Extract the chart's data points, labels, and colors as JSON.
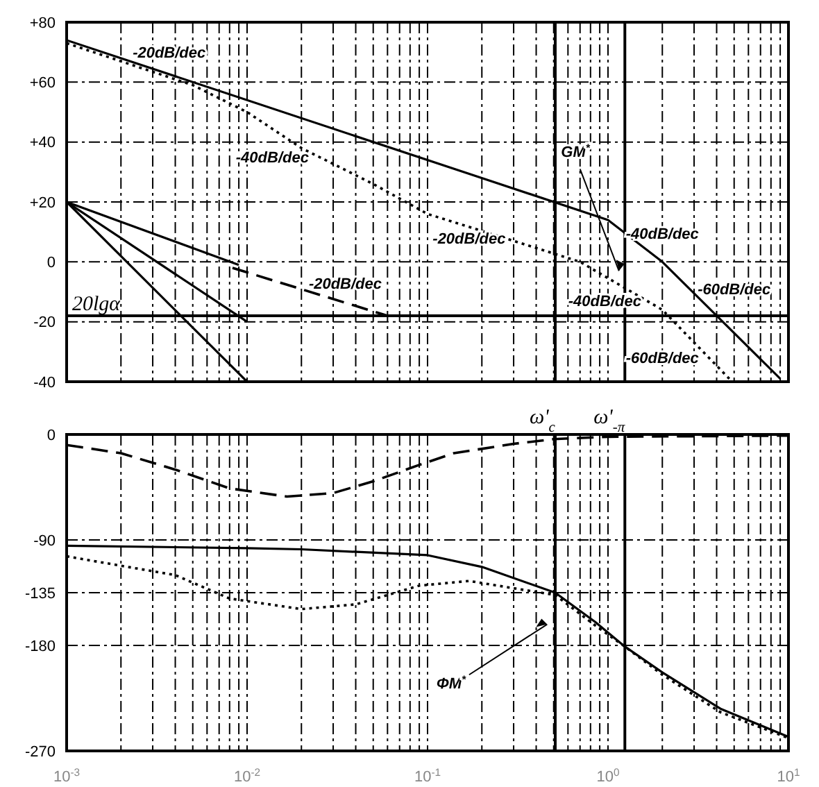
{
  "chart_data": [
    {
      "type": "line",
      "log": "x",
      "grid": true,
      "marker": "none",
      "tick_labels": "y",
      "xlim": [
        0.001,
        10
      ],
      "ylim": [
        -40,
        80
      ],
      "xticks": [
        {
          "value": 0.001,
          "label": null
        },
        {
          "value": 0.002,
          "label": null
        },
        {
          "value": 0.003,
          "label": null
        },
        {
          "value": 0.004,
          "label": null
        },
        {
          "value": 0.005,
          "label": null
        },
        {
          "value": 0.006,
          "label": null
        },
        {
          "value": 0.007,
          "label": null
        },
        {
          "value": 0.008,
          "label": null
        },
        {
          "value": 0.009,
          "label": null
        },
        {
          "value": 0.01,
          "label": null
        },
        {
          "value": 0.02,
          "label": null
        },
        {
          "value": 0.03,
          "label": null
        },
        {
          "value": 0.04,
          "label": null
        },
        {
          "value": 0.05,
          "label": null
        },
        {
          "value": 0.06,
          "label": null
        },
        {
          "value": 0.07,
          "label": null
        },
        {
          "value": 0.08,
          "label": null
        },
        {
          "value": 0.09,
          "label": null
        },
        {
          "value": 0.1,
          "label": null
        },
        {
          "value": 0.2,
          "label": null
        },
        {
          "value": 0.3,
          "label": null
        },
        {
          "value": 0.4,
          "label": null
        },
        {
          "value": 0.5,
          "label": null
        },
        {
          "value": 0.6,
          "label": null
        },
        {
          "value": 0.7,
          "label": null
        },
        {
          "value": 0.8,
          "label": null
        },
        {
          "value": 0.9,
          "label": null
        },
        {
          "value": 1,
          "label": null
        },
        {
          "value": 2,
          "label": null
        },
        {
          "value": 3,
          "label": null
        },
        {
          "value": 4,
          "label": null
        },
        {
          "value": 5,
          "label": null
        },
        {
          "value": 6,
          "label": null
        },
        {
          "value": 7,
          "label": null
        },
        {
          "value": 8,
          "label": null
        },
        {
          "value": 9,
          "label": null
        },
        {
          "value": 10,
          "label": null
        }
      ],
      "yticks": [
        {
          "value": 80,
          "label": "+80"
        },
        {
          "value": 60,
          "label": "+60"
        },
        {
          "value": 40,
          "label": "+40"
        },
        {
          "value": 20,
          "label": "+20"
        },
        0,
        -20,
        -40
      ],
      "series": [
        {
          "color": "#000000",
          "line_style": "solid",
          "x": [
            0.001,
            1,
            2,
            9
          ],
          "values": [
            74,
            14,
            0,
            -39
          ]
        },
        {
          "color": "#000000",
          "line_style": "dotted",
          "x": [
            0.001,
            0.005,
            0.01,
            0.02,
            0.05,
            0.1,
            0.3,
            0.7,
            2,
            4.7
          ],
          "values": [
            73,
            59,
            50,
            38,
            26,
            16,
            7,
            0,
            -16,
            -39
          ]
        },
        {
          "color": "#000000",
          "line_style": "dashed",
          "x": [
            0.0083,
            0.06,
            10
          ],
          "values": [
            -2,
            -18,
            -18
          ]
        },
        {
          "color": "#000000",
          "line_style": "solid",
          "x": [
            0.001,
            0.009
          ],
          "values": [
            20,
            -1
          ]
        },
        {
          "color": "#000000",
          "line_style": "solid",
          "x": [
            0.001,
            0.01
          ],
          "values": [
            20,
            -20
          ]
        },
        {
          "color": "#000000",
          "line_style": "solid",
          "x": [
            0.001,
            0.01
          ],
          "values": [
            20,
            -40
          ]
        }
      ],
      "ref_lines": [
        {
          "axis": "y",
          "value": -18,
          "label": "20lgα"
        },
        {
          "axis": "x",
          "value": 0.51,
          "label": null
        },
        {
          "axis": "x",
          "value": 1.24,
          "label": null
        }
      ],
      "annotations": [
        "-20dB/dec",
        "-40dB/dec",
        "-20dB/dec",
        "-20dB/dec",
        "-40dB/dec",
        "-60dB/dec",
        "-40dB/dec",
        "-60dB/dec",
        "GM$^{*}$"
      ]
    },
    {
      "type": "line",
      "log": "x",
      "grid": true,
      "marker": "none",
      "xlim": [
        0.001,
        10
      ],
      "ylim": [
        -270,
        0
      ],
      "xticks": [
        {
          "value": 0.001,
          "label": "10$^{-3}$"
        },
        {
          "value": 0.002,
          "label": null
        },
        {
          "value": 0.003,
          "label": null
        },
        {
          "value": 0.004,
          "label": null
        },
        {
          "value": 0.005,
          "label": null
        },
        {
          "value": 0.006,
          "label": null
        },
        {
          "value": 0.007,
          "label": null
        },
        {
          "value": 0.008,
          "label": null
        },
        {
          "value": 0.009,
          "label": null
        },
        {
          "value": 0.01,
          "label": "10$^{-2}$"
        },
        {
          "value": 0.02,
          "label": null
        },
        {
          "value": 0.03,
          "label": null
        },
        {
          "value": 0.04,
          "label": null
        },
        {
          "value": 0.05,
          "label": null
        },
        {
          "value": 0.06,
          "label": null
        },
        {
          "value": 0.07,
          "label": null
        },
        {
          "value": 0.08,
          "label": null
        },
        {
          "value": 0.09,
          "label": null
        },
        {
          "value": 0.1,
          "label": "10$^{-1}$"
        },
        {
          "value": 0.2,
          "label": null
        },
        {
          "value": 0.3,
          "label": null
        },
        {
          "value": 0.4,
          "label": null
        },
        {
          "value": 0.5,
          "label": null
        },
        {
          "value": 0.6,
          "label": null
        },
        {
          "value": 0.7,
          "label": null
        },
        {
          "value": 0.8,
          "label": null
        },
        {
          "value": 0.9,
          "label": null
        },
        {
          "value": 1,
          "label": "10$^{0}$"
        },
        {
          "value": 2,
          "label": null
        },
        {
          "value": 3,
          "label": null
        },
        {
          "value": 4,
          "label": null
        },
        {
          "value": 5,
          "label": null
        },
        {
          "value": 6,
          "label": null
        },
        {
          "value": 7,
          "label": null
        },
        {
          "value": 8,
          "label": null
        },
        {
          "value": 9,
          "label": null
        },
        {
          "value": 10,
          "label": "10$^{1}$"
        }
      ],
      "yticks": [
        0,
        -90,
        -135,
        -180,
        -270
      ],
      "series": [
        {
          "color": "#000000",
          "line_style": "dashed",
          "x": [
            0.001,
            0.002,
            0.004,
            0.008,
            0.0166,
            0.03,
            0.05,
            0.09,
            0.14,
            0.3,
            0.5,
            1,
            10
          ],
          "values": [
            -9,
            -16,
            -30,
            -46,
            -53,
            -50,
            -40,
            -26,
            -16,
            -8,
            -4,
            -2,
            -1
          ]
        },
        {
          "color": "#000000",
          "line_style": "solid",
          "x": [
            0.001,
            0.01,
            0.02,
            0.1,
            0.2,
            0.51,
            0.85,
            1.24,
            2,
            4.2,
            10
          ],
          "values": [
            -95,
            -97,
            -98,
            -103,
            -113,
            -135,
            -160,
            -181,
            -203,
            -234,
            -258
          ]
        },
        {
          "color": "#000000",
          "line_style": "dotted",
          "x": [
            0.001,
            0.004,
            0.008,
            0.02,
            0.04,
            0.09,
            0.17,
            0.51,
            0.85,
            1.24,
            2,
            4.2,
            10
          ],
          "values": [
            -104,
            -120,
            -140,
            -149,
            -145,
            -129,
            -125,
            -137,
            -163,
            -181,
            -205,
            -237,
            -259
          ]
        }
      ],
      "ref_lines": [
        {
          "axis": "x",
          "value": 0.51,
          "label": "ω'$_{c}$"
        },
        {
          "axis": "x",
          "value": 1.24,
          "label": "ω'$_{-π}$"
        }
      ],
      "annotations": [
        "ΦM$^{*}$"
      ]
    }
  ]
}
